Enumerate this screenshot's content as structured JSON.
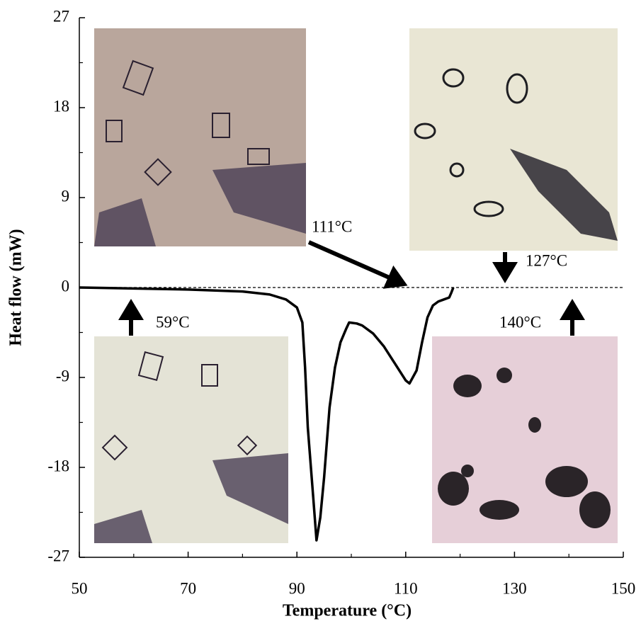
{
  "chart_data": {
    "type": "line",
    "x_label": "Temperature (°C)",
    "y_label": "Heat flow (mW)",
    "x": [
      50,
      60,
      70,
      80,
      85,
      88,
      90,
      91,
      91.5,
      92,
      93,
      93.6,
      94.3,
      95,
      96,
      97,
      98,
      99,
      99.6,
      101,
      102,
      104,
      106,
      108,
      110,
      110.7,
      112,
      113,
      114,
      115,
      116,
      117,
      118,
      118.4,
      118.75
    ],
    "values": [
      0,
      -0.1,
      -0.2,
      -0.4,
      -0.7,
      -1.2,
      -2,
      -3.5,
      -8,
      -14,
      -21,
      -25.3,
      -23,
      -19,
      -12,
      -8,
      -5.5,
      -4.2,
      -3.5,
      -3.6,
      -3.8,
      -4.6,
      -5.9,
      -7.6,
      -9.3,
      -9.6,
      -8.3,
      -5.5,
      -3,
      -1.8,
      -1.4,
      -1.2,
      -1,
      -0.5,
      0
    ],
    "color": "#000000",
    "baseline": 0,
    "xlim": [
      50,
      150
    ],
    "xticks": [
      50,
      70,
      90,
      110,
      130,
      150
    ],
    "ylim": [
      -27,
      27
    ],
    "yticks": [
      -27,
      -18,
      -9,
      0,
      9,
      18,
      27
    ],
    "annotations": [
      "59°C",
      "111°C",
      "127°C",
      "140°C"
    ]
  }
}
